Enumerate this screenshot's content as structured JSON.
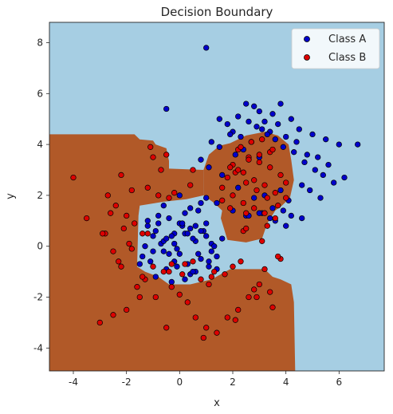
{
  "chart_data": {
    "type": "scatter",
    "title": "Decision Boundary",
    "xlabel": "x",
    "ylabel": "y",
    "xlim": [
      -4.9,
      7.7
    ],
    "ylim": [
      -4.9,
      8.8
    ],
    "xticks": [
      "-4",
      "-2",
      "0",
      "2",
      "4",
      "6"
    ],
    "xtick_values": [
      -4,
      -2,
      0,
      2,
      4,
      6
    ],
    "yticks": [
      "-4",
      "-2",
      "0",
      "2",
      "4",
      "6",
      "8"
    ],
    "ytick_values": [
      -4,
      -2,
      0,
      2,
      4,
      6,
      8
    ],
    "grid": false,
    "legend_position": "top-right",
    "colors": {
      "background_region": "#a6cee3",
      "boundary_region": "#b15928",
      "class_a": "#0000cc",
      "class_b": "#dd0000",
      "edge": "#000000"
    },
    "regions": [
      {
        "label": "Class B region",
        "polygon": [
          [
            -4.9,
            4.4
          ],
          [
            -1.7,
            4.4
          ],
          [
            -1.5,
            4.2
          ],
          [
            -1.0,
            4.15
          ],
          [
            -0.9,
            4.0
          ],
          [
            -0.5,
            3.85
          ],
          [
            -0.4,
            3.35
          ],
          [
            -0.4,
            3.05
          ],
          [
            0.9,
            3.0
          ],
          [
            0.9,
            2.0
          ],
          [
            0.25,
            1.85
          ],
          [
            -0.6,
            1.75
          ],
          [
            -1.5,
            1.6
          ],
          [
            -1.55,
            1.2
          ],
          [
            -1.6,
            -0.8
          ],
          [
            -1.3,
            -1.0
          ],
          [
            -0.8,
            -1.2
          ],
          [
            -0.4,
            -1.5
          ],
          [
            0.4,
            -1.5
          ],
          [
            1.2,
            -1.3
          ],
          [
            1.9,
            -0.9
          ],
          [
            3.2,
            -0.9
          ],
          [
            3.5,
            -1.2
          ],
          [
            3.8,
            -1.3
          ],
          [
            4.2,
            -1.5
          ],
          [
            4.3,
            -2.2
          ],
          [
            4.35,
            -4.9
          ],
          [
            -4.9,
            -4.9
          ]
        ]
      },
      {
        "label": "Class B cluster region",
        "polygon": [
          [
            0.9,
            3.0
          ],
          [
            1.1,
            3.6
          ],
          [
            1.5,
            3.95
          ],
          [
            1.9,
            4.05
          ],
          [
            2.5,
            4.35
          ],
          [
            3.2,
            4.5
          ],
          [
            3.7,
            4.35
          ],
          [
            4.1,
            4.0
          ],
          [
            4.2,
            3.4
          ],
          [
            4.3,
            2.6
          ],
          [
            4.15,
            1.9
          ],
          [
            3.85,
            1.6
          ],
          [
            3.6,
            1.4
          ],
          [
            3.3,
            0.9
          ],
          [
            3.1,
            0.3
          ],
          [
            2.5,
            0.15
          ],
          [
            1.8,
            0.25
          ],
          [
            1.55,
            1.1
          ],
          [
            1.6,
            1.4
          ],
          [
            1.3,
            1.7
          ],
          [
            0.9,
            2.0
          ]
        ]
      }
    ],
    "series": [
      {
        "name": "Class A",
        "color": "#0000cc",
        "x": [
          1.0,
          -0.5,
          1.5,
          2.2,
          2.5,
          2.8,
          3.0,
          3.2,
          3.5,
          3.8,
          4.2,
          4.5,
          5.0,
          5.5,
          6.0,
          6.7,
          1.8,
          2.0,
          2.6,
          2.9,
          3.1,
          3.4,
          3.7,
          4.0,
          4.4,
          4.8,
          5.2,
          5.6,
          1.2,
          1.5,
          1.9,
          2.3,
          2.7,
          3.3,
          3.6,
          3.9,
          4.3,
          4.7,
          5.1,
          5.4,
          5.8,
          6.2,
          2.1,
          2.4,
          3.0,
          3.2,
          3.8,
          4.1,
          4.6,
          4.9,
          5.3,
          0.8,
          1.1,
          1.6,
          2.2,
          2.8,
          3.5,
          3.9,
          4.2,
          4.6,
          1.4,
          2.0,
          2.5,
          3.1,
          3.6,
          -1.5,
          -1.2,
          -1.0,
          -0.8,
          -0.6,
          -0.4,
          -0.2,
          0.0,
          0.2,
          0.4,
          0.6,
          0.8,
          1.0,
          1.2,
          1.4,
          1.6,
          -1.3,
          -1.1,
          -0.9,
          -0.7,
          -0.5,
          -0.3,
          -0.1,
          0.1,
          0.3,
          0.5,
          0.7,
          0.9,
          1.1,
          1.3,
          -1.4,
          -1.0,
          -0.6,
          -0.2,
          0.2,
          0.6,
          1.0,
          1.4,
          -0.8,
          -0.4,
          0.0,
          0.4,
          0.8,
          1.2,
          -0.6,
          -0.2,
          0.2,
          0.6,
          1.0,
          -1.2,
          -0.9,
          -0.5,
          -0.1,
          0.3,
          0.7,
          1.1,
          0.0,
          0.4,
          0.8,
          -0.3,
          0.1,
          0.5,
          2.6,
          3.0,
          3.4,
          4.0
        ],
        "y": [
          7.8,
          5.4,
          5.0,
          5.1,
          5.6,
          5.5,
          5.3,
          4.9,
          5.2,
          5.6,
          5.0,
          4.6,
          4.4,
          4.2,
          4.0,
          4.0,
          4.8,
          4.5,
          4.9,
          4.7,
          4.6,
          4.5,
          4.8,
          4.3,
          4.1,
          3.6,
          3.5,
          3.2,
          4.1,
          3.9,
          4.4,
          4.3,
          4.1,
          4.4,
          4.2,
          3.9,
          3.7,
          3.3,
          3.0,
          2.8,
          2.5,
          2.7,
          3.6,
          3.8,
          3.5,
          2.0,
          2.2,
          1.8,
          2.4,
          2.2,
          1.9,
          3.4,
          3.1,
          2.8,
          2.3,
          1.9,
          1.5,
          1.4,
          1.2,
          1.1,
          1.7,
          1.4,
          1.2,
          1.3,
          1.0,
          -0.7,
          0.8,
          0.4,
          0.9,
          -0.2,
          1.1,
          0.5,
          -0.3,
          1.3,
          0.7,
          0.2,
          -0.5,
          0.9,
          0.1,
          -0.4,
          0.3,
          0.0,
          -0.6,
          0.6,
          0.1,
          -0.9,
          0.4,
          -0.1,
          0.8,
          -0.7,
          0.3,
          -0.3,
          0.6,
          -0.8,
          0.0,
          -0.4,
          -0.2,
          0.2,
          -0.6,
          0.5,
          -1.0,
          0.4,
          -0.9,
          1.2,
          -0.3,
          0.9,
          -1.1,
          0.6,
          -0.2,
          1.6,
          0.1,
          -1.3,
          0.8,
          1.9,
          1.0,
          -1.2,
          0.3,
          -0.8,
          0.5,
          1.4,
          -0.6,
          2.0,
          1.5,
          1.7,
          -1.4,
          0.9,
          -1.0,
          1.2,
          1.3,
          1.1,
          0.8
        ]
      },
      {
        "name": "Class B",
        "color": "#dd0000",
        "x": [
          -4.0,
          -3.5,
          -2.8,
          -3.0,
          -2.5,
          -2.0,
          -1.5,
          -1.8,
          -2.2,
          -1.0,
          -2.6,
          -2.9,
          -2.3,
          -1.7,
          -1.2,
          -0.8,
          -2.4,
          -2.1,
          -1.9,
          -1.6,
          -1.3,
          -0.6,
          -0.3,
          0.0,
          0.3,
          0.6,
          1.0,
          1.4,
          1.8,
          2.2,
          2.6,
          3.0,
          3.4,
          3.8,
          -0.4,
          0.2,
          0.8,
          1.2,
          2.0,
          2.8,
          -0.2,
          0.4,
          1.6,
          2.4,
          3.2,
          -2.7,
          -2.0,
          -1.4,
          -0.9,
          -0.5,
          -1.1,
          -2.2,
          -0.7,
          0.5,
          1.1,
          1.7,
          2.3,
          2.9,
          3.5,
          0.9,
          1.3,
          2.1,
          -1.8,
          -2.5,
          -1.0,
          -0.4,
          1.9,
          2.5,
          3.1,
          3.7,
          2.2,
          2.6,
          3.0,
          3.4,
          3.8,
          2.0,
          2.4,
          2.8,
          3.2,
          3.6,
          2.1,
          2.5,
          2.9,
          3.3,
          3.7,
          4.0,
          1.8,
          2.2,
          2.6,
          3.0,
          3.4,
          1.6,
          2.0,
          2.4,
          2.8,
          3.2,
          3.6,
          2.3,
          2.7,
          3.1,
          3.5,
          1.9,
          2.5,
          3.3,
          4.0,
          -0.5,
          -0.3,
          0.1,
          0.5,
          -1.4,
          -1.2
        ],
        "y": [
          2.7,
          1.1,
          0.5,
          -3.0,
          -2.7,
          -2.5,
          -2.0,
          2.2,
          2.8,
          3.5,
          1.3,
          0.5,
          -0.6,
          0.9,
          2.3,
          2.0,
          1.6,
          0.7,
          0.1,
          -1.6,
          -1.3,
          -1.0,
          -1.6,
          -1.9,
          -2.2,
          -2.8,
          -3.2,
          -3.4,
          -2.8,
          -2.5,
          -2.0,
          -1.5,
          -1.8,
          -0.5,
          -1.0,
          -0.7,
          -1.3,
          -1.2,
          -0.8,
          -1.7,
          2.1,
          2.4,
          1.8,
          0.6,
          -0.9,
          2.0,
          1.2,
          -1.2,
          -2.0,
          -3.2,
          3.9,
          -0.8,
          3.0,
          3.0,
          -1.5,
          -1.1,
          -0.6,
          -2.0,
          -2.4,
          -3.6,
          -1.0,
          -2.9,
          -0.1,
          -0.2,
          -0.8,
          1.9,
          1.5,
          0.7,
          0.2,
          -0.4,
          3.8,
          3.5,
          3.3,
          3.1,
          2.8,
          3.2,
          2.9,
          2.6,
          2.4,
          2.1,
          2.9,
          2.5,
          2.2,
          1.9,
          1.6,
          2.5,
          2.7,
          3.0,
          3.4,
          3.6,
          3.7,
          2.3,
          2.0,
          1.7,
          1.5,
          1.3,
          1.1,
          3.9,
          4.1,
          4.2,
          3.8,
          3.1,
          1.3,
          0.8,
          1.9,
          3.6,
          -0.7,
          -1.1,
          -0.6,
          0.5,
          0.5
        ]
      }
    ]
  }
}
